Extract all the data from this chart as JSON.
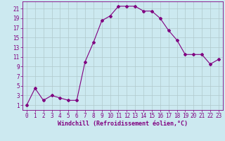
{
  "x": [
    0,
    1,
    2,
    3,
    4,
    5,
    6,
    7,
    8,
    9,
    10,
    11,
    12,
    13,
    14,
    15,
    16,
    17,
    18,
    19,
    20,
    21,
    22,
    23
  ],
  "y": [
    1,
    4.5,
    2,
    3,
    2.5,
    2,
    2,
    10,
    14,
    18.5,
    19.5,
    21.5,
    21.5,
    21.5,
    20.5,
    20.5,
    19,
    16.5,
    14.5,
    11.5,
    11.5,
    11.5,
    9.5,
    10.5
  ],
  "line_color": "#800080",
  "marker": "D",
  "marker_size": 2,
  "bg_color": "#cce9f0",
  "xlabel": "Windchill (Refroidissement éolien,°C)",
  "xlabel_fontsize": 6.0,
  "ylabel_ticks": [
    1,
    3,
    5,
    7,
    9,
    11,
    13,
    15,
    17,
    19,
    21
  ],
  "xlim": [
    -0.5,
    23.5
  ],
  "ylim": [
    0,
    22.5
  ],
  "grid_color": "#b0c8cc",
  "tick_fontsize": 5.5,
  "title": ""
}
